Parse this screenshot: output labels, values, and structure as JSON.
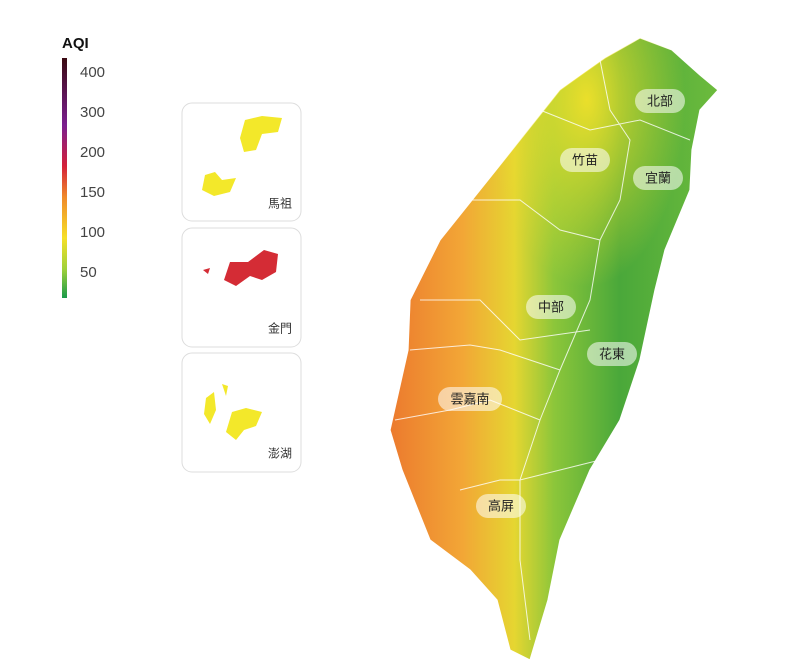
{
  "legend": {
    "title": "AQI",
    "ticks": [
      400,
      300,
      200,
      150,
      100,
      50
    ]
  },
  "insets": [
    {
      "label": "馬祖"
    },
    {
      "label": "金門"
    },
    {
      "label": "澎湖"
    }
  ],
  "regions": [
    {
      "label": "北部"
    },
    {
      "label": "竹苗"
    },
    {
      "label": "宜蘭"
    },
    {
      "label": "中部"
    },
    {
      "label": "花東"
    },
    {
      "label": "雲嘉南"
    },
    {
      "label": "高屏"
    }
  ]
}
